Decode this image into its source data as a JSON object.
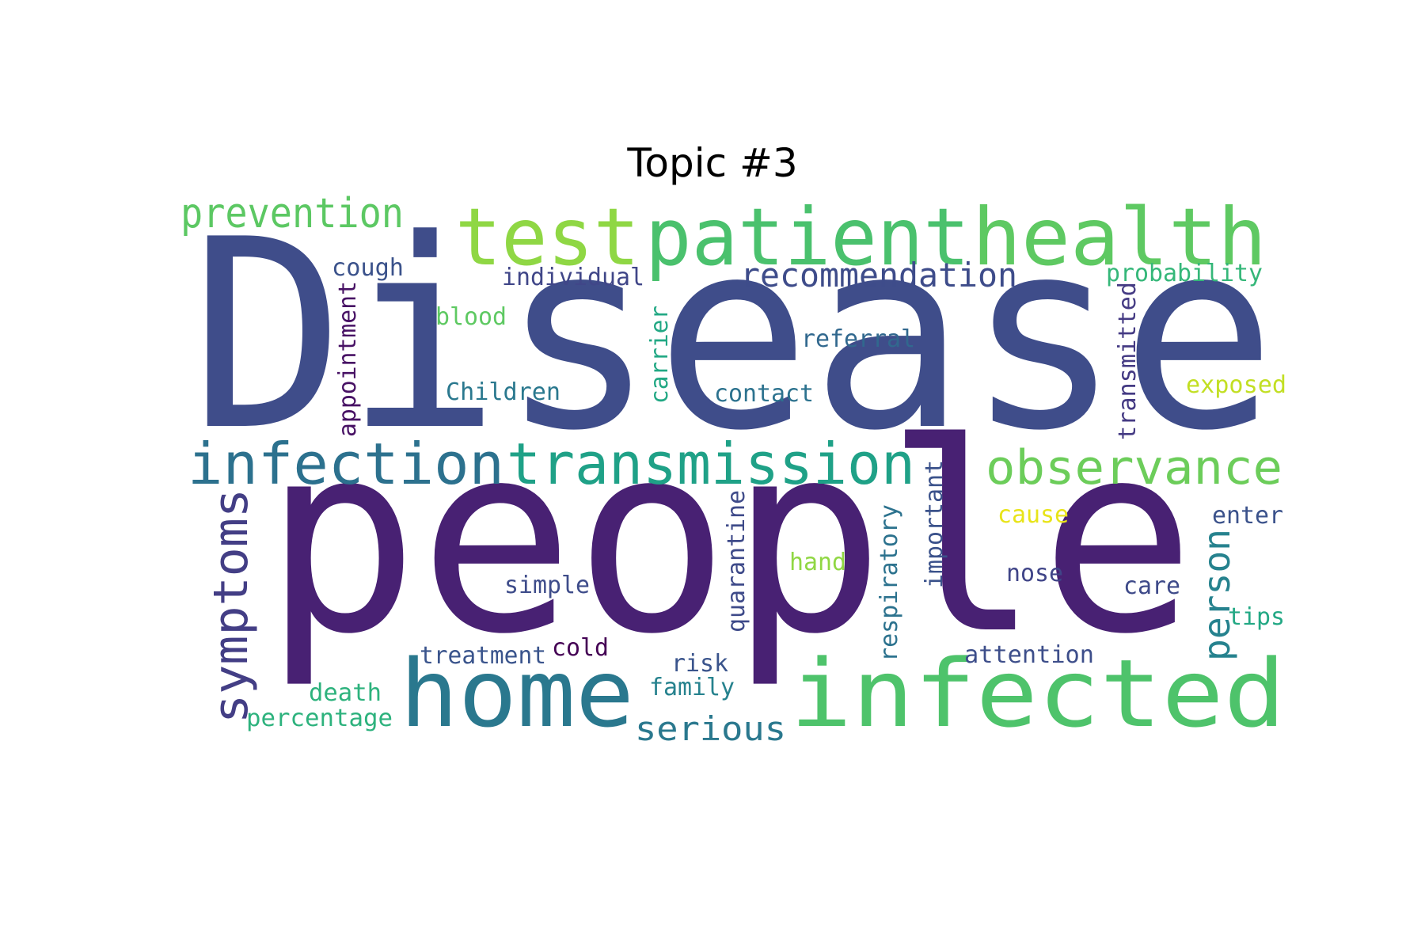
{
  "title": "Topic #3",
  "palette": {
    "disease": "#3f4d8a",
    "people": "#482173",
    "test": "#8fd744",
    "patient": "#4ac16d",
    "health": "#5ec962",
    "prevention": "#5cc863",
    "recommendation": "#3e4c8a",
    "probability": "#35b779",
    "individual": "#404688",
    "cough": "#3b528b",
    "blood": "#5ec962",
    "appointment": "#471164",
    "carrier": "#22a884",
    "referral": "#31688e",
    "transmitted": "#443a83",
    "exposed": "#c2df23",
    "children": "#2a788e",
    "contact": "#2c728e",
    "infection": "#2c718e",
    "transmission": "#1fa187",
    "observance": "#6ccd5a",
    "symptoms": "#433e85",
    "cause": "#e8e419",
    "enter": "#3b528b",
    "person": "#26828e",
    "hand": "#90d743",
    "quarantine": "#3e4a89",
    "respiratory": "#2c728e",
    "important": "#3b528b",
    "nose": "#404588",
    "care": "#3e4a89",
    "tips": "#22a884",
    "simple": "#3e4c8a",
    "home": "#2a788e",
    "infected": "#4ec36b",
    "treatment": "#3a548c",
    "cold": "#440154",
    "risk": "#3a548c",
    "attention": "#3d4e8a",
    "death": "#2db27d",
    "family": "#26828e",
    "percentage": "#2db27d",
    "serious": "#2a788e"
  },
  "words": [
    {
      "id": "disease",
      "text": "Disease"
    },
    {
      "id": "people",
      "text": "people"
    },
    {
      "id": "test",
      "text": "test"
    },
    {
      "id": "patient",
      "text": "patient"
    },
    {
      "id": "health",
      "text": "health"
    },
    {
      "id": "prevention",
      "text": "prevention"
    },
    {
      "id": "recommendation",
      "text": "recommendation"
    },
    {
      "id": "probability",
      "text": "probability"
    },
    {
      "id": "individual",
      "text": "individual"
    },
    {
      "id": "cough",
      "text": "cough"
    },
    {
      "id": "blood",
      "text": "blood"
    },
    {
      "id": "appointment",
      "text": "appointment"
    },
    {
      "id": "carrier",
      "text": "carrier"
    },
    {
      "id": "referral",
      "text": "referral"
    },
    {
      "id": "transmitted",
      "text": "transmitted"
    },
    {
      "id": "exposed",
      "text": "exposed"
    },
    {
      "id": "children",
      "text": "Children"
    },
    {
      "id": "contact",
      "text": "contact"
    },
    {
      "id": "infection",
      "text": "infection"
    },
    {
      "id": "transmission",
      "text": "transmission"
    },
    {
      "id": "observance",
      "text": "observance"
    },
    {
      "id": "symptoms",
      "text": "symptoms"
    },
    {
      "id": "cause",
      "text": "cause"
    },
    {
      "id": "enter",
      "text": "enter"
    },
    {
      "id": "person",
      "text": "person"
    },
    {
      "id": "hand",
      "text": "hand"
    },
    {
      "id": "quarantine",
      "text": "quarantine"
    },
    {
      "id": "respiratory",
      "text": "respiratory"
    },
    {
      "id": "important",
      "text": "important"
    },
    {
      "id": "nose",
      "text": "nose"
    },
    {
      "id": "care",
      "text": "care"
    },
    {
      "id": "tips",
      "text": "tips"
    },
    {
      "id": "simple",
      "text": "simple"
    },
    {
      "id": "home",
      "text": "home"
    },
    {
      "id": "infected",
      "text": "infected"
    },
    {
      "id": "treatment",
      "text": "treatment"
    },
    {
      "id": "cold",
      "text": "cold"
    },
    {
      "id": "risk",
      "text": "risk"
    },
    {
      "id": "attention",
      "text": "attention"
    },
    {
      "id": "death",
      "text": "death"
    },
    {
      "id": "family",
      "text": "family"
    },
    {
      "id": "percentage",
      "text": "percentage"
    },
    {
      "id": "serious",
      "text": "serious"
    }
  ]
}
